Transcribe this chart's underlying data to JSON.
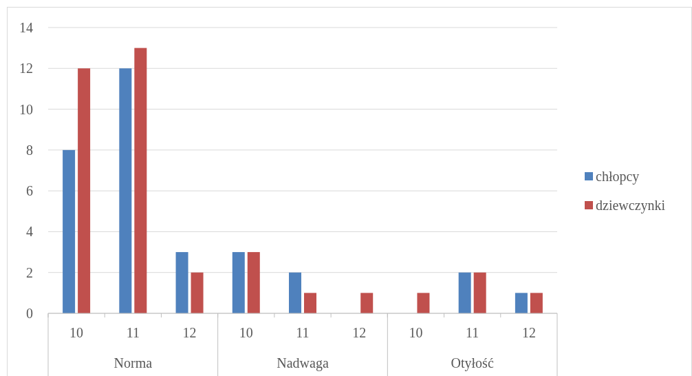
{
  "chart_data": {
    "type": "bar",
    "categories": [
      "10",
      "11",
      "12",
      "10",
      "11",
      "12",
      "10",
      "11",
      "12"
    ],
    "annotations": [
      "Norma",
      "Nadwaga",
      "Otyłość"
    ],
    "series": [
      {
        "name": "chłopcy",
        "color": "#4f81bd",
        "values": [
          8,
          12,
          3,
          3,
          2,
          0,
          0,
          2,
          1
        ]
      },
      {
        "name": "dziewczynki",
        "color": "#c0504d",
        "values": [
          12,
          13,
          2,
          3,
          1,
          1,
          1,
          2,
          1
        ]
      }
    ],
    "ylim": [
      0,
      14
    ],
    "yticks": [
      0,
      2,
      4,
      6,
      8,
      10,
      12,
      14
    ],
    "grid": "y",
    "legend": "right"
  }
}
